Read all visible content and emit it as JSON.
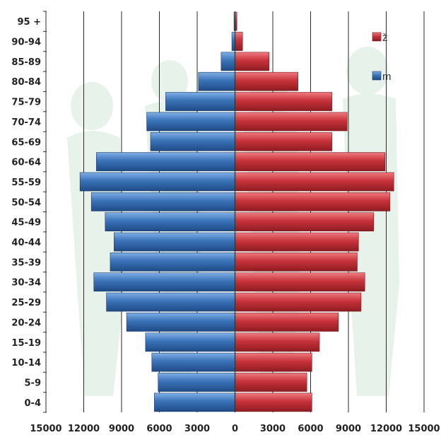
{
  "chart_data": {
    "type": "bar",
    "orientation": "horizontal",
    "subtype": "population-pyramid",
    "title": "",
    "xlabel": "",
    "ylabel": "",
    "categories": [
      "0-4",
      "5-9",
      "10-14",
      "15-19",
      "20-24",
      "25-29",
      "30-34",
      "35-39",
      "40-44",
      "45-49",
      "50-54",
      "55-59",
      "60-64",
      "65-69",
      "70-74",
      "75-79",
      "80-84",
      "85-89",
      "90-94",
      "95 +"
    ],
    "x_ticks": [
      "15000",
      "12000",
      "9000",
      "6000",
      "3000",
      "0",
      "3000",
      "6000",
      "9000",
      "12000",
      "15000"
    ],
    "xlim": [
      -15000,
      15000
    ],
    "grid": "vertical",
    "legend_position": "top-right",
    "series": [
      {
        "name": "ž",
        "side": "right",
        "color": "#c8323a",
        "values": [
          6100,
          5700,
          6100,
          6700,
          8200,
          10000,
          10300,
          9700,
          9800,
          11000,
          12300,
          12600,
          11900,
          7700,
          8900,
          7700,
          5000,
          2700,
          600,
          150
        ]
      },
      {
        "name": "m",
        "side": "left",
        "color": "#3a72b8",
        "values": [
          6400,
          6100,
          6600,
          7100,
          8600,
          10200,
          11200,
          9900,
          9600,
          10300,
          11400,
          12300,
          11000,
          6700,
          7000,
          5500,
          2900,
          1100,
          250,
          80
        ]
      }
    ]
  }
}
